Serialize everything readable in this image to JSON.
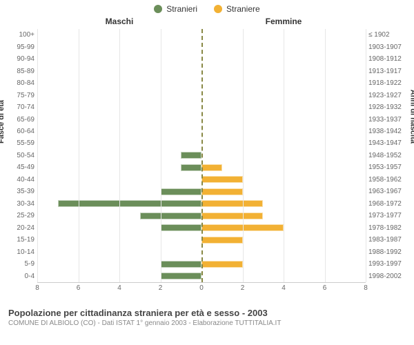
{
  "legend": {
    "male_label": "Stranieri",
    "female_label": "Straniere",
    "male_color": "#6b8e5a",
    "female_color": "#f2b134"
  },
  "headers": {
    "left": "Maschi",
    "right": "Femmine"
  },
  "axis": {
    "left_title": "Fasce di età",
    "right_title": "Anni di nascita"
  },
  "x": {
    "max": 8,
    "ticks": [
      8,
      6,
      4,
      2,
      0,
      2,
      4,
      6,
      8
    ]
  },
  "title": "Popolazione per cittadinanza straniera per età e sesso - 2003",
  "subtitle": "COMUNE DI ALBIOLO (CO) - Dati ISTAT 1° gennaio 2003 - Elaborazione TUTTITALIA.IT",
  "rows": [
    {
      "age": "100+",
      "birth": "≤ 1902",
      "m": 0,
      "f": 0
    },
    {
      "age": "95-99",
      "birth": "1903-1907",
      "m": 0,
      "f": 0
    },
    {
      "age": "90-94",
      "birth": "1908-1912",
      "m": 0,
      "f": 0
    },
    {
      "age": "85-89",
      "birth": "1913-1917",
      "m": 0,
      "f": 0
    },
    {
      "age": "80-84",
      "birth": "1918-1922",
      "m": 0,
      "f": 0
    },
    {
      "age": "75-79",
      "birth": "1923-1927",
      "m": 0,
      "f": 0
    },
    {
      "age": "70-74",
      "birth": "1928-1932",
      "m": 0,
      "f": 0
    },
    {
      "age": "65-69",
      "birth": "1933-1937",
      "m": 0,
      "f": 0
    },
    {
      "age": "60-64",
      "birth": "1938-1942",
      "m": 0,
      "f": 0
    },
    {
      "age": "55-59",
      "birth": "1943-1947",
      "m": 0,
      "f": 0
    },
    {
      "age": "50-54",
      "birth": "1948-1952",
      "m": 1,
      "f": 0
    },
    {
      "age": "45-49",
      "birth": "1953-1957",
      "m": 1,
      "f": 1
    },
    {
      "age": "40-44",
      "birth": "1958-1962",
      "m": 0,
      "f": 2
    },
    {
      "age": "35-39",
      "birth": "1963-1967",
      "m": 2,
      "f": 2
    },
    {
      "age": "30-34",
      "birth": "1968-1972",
      "m": 7,
      "f": 3
    },
    {
      "age": "25-29",
      "birth": "1973-1977",
      "m": 3,
      "f": 3
    },
    {
      "age": "20-24",
      "birth": "1978-1982",
      "m": 2,
      "f": 4
    },
    {
      "age": "15-19",
      "birth": "1983-1987",
      "m": 0,
      "f": 2
    },
    {
      "age": "10-14",
      "birth": "1988-1992",
      "m": 0,
      "f": 0
    },
    {
      "age": "5-9",
      "birth": "1993-1997",
      "m": 2,
      "f": 2
    },
    {
      "age": "0-4",
      "birth": "1998-2002",
      "m": 2,
      "f": 0
    }
  ],
  "colors": {
    "grid": "#e6e6e6",
    "background": "#ffffff"
  }
}
